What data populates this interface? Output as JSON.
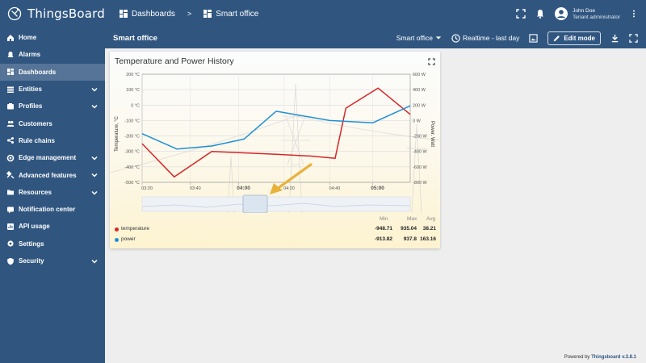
{
  "app": {
    "brand": "ThingsBoard"
  },
  "sidebar": {
    "items": [
      {
        "label": "Home",
        "icon": "home-icon",
        "active": false,
        "expandable": false
      },
      {
        "label": "Alarms",
        "icon": "alarm-icon",
        "active": false,
        "expandable": false
      },
      {
        "label": "Dashboards",
        "icon": "dashboard-icon",
        "active": true,
        "expandable": false
      },
      {
        "label": "Entities",
        "icon": "entities-icon",
        "active": false,
        "expandable": true
      },
      {
        "label": "Profiles",
        "icon": "profiles-icon",
        "active": false,
        "expandable": true
      },
      {
        "label": "Customers",
        "icon": "customers-icon",
        "active": false,
        "expandable": false
      },
      {
        "label": "Rule chains",
        "icon": "rule-chains-icon",
        "active": false,
        "expandable": false
      },
      {
        "label": "Edge management",
        "icon": "edge-icon",
        "active": false,
        "expandable": true
      },
      {
        "label": "Advanced features",
        "icon": "advanced-icon",
        "active": false,
        "expandable": true
      },
      {
        "label": "Resources",
        "icon": "resources-icon",
        "active": false,
        "expandable": true
      },
      {
        "label": "Notification center",
        "icon": "notification-icon",
        "active": false,
        "expandable": false
      },
      {
        "label": "API usage",
        "icon": "api-usage-icon",
        "active": false,
        "expandable": false
      },
      {
        "label": "Settings",
        "icon": "settings-icon",
        "active": false,
        "expandable": false
      },
      {
        "label": "Security",
        "icon": "security-icon",
        "active": false,
        "expandable": true
      }
    ]
  },
  "header": {
    "breadcrumb": [
      "Dashboards",
      "Smart office"
    ],
    "separator": ">",
    "user": {
      "name": "John Doe",
      "role": "Tenant administrator"
    }
  },
  "dashboard": {
    "title": "Smart office",
    "state_selector": "Smart office",
    "timewindow": "Realtime - last day",
    "edit_label": "Edit mode"
  },
  "widget": {
    "title": "Temperature and Power History",
    "legend": {
      "headers": [
        "Min",
        "Max",
        "Avg"
      ],
      "rows": [
        {
          "name": "temperature",
          "color": "#d62728",
          "min": "-948.71",
          "max": "935.04",
          "avg": "38.21"
        },
        {
          "name": "power",
          "color": "#1f8fd6",
          "min": "-913.82",
          "max": "937.8",
          "avg": "163.16"
        }
      ]
    }
  },
  "chart_data": {
    "type": "line",
    "x": [
      "03:20",
      "03:40",
      "04:00",
      "04:20",
      "04:40",
      "05:00"
    ],
    "xlabel": "",
    "y_left": {
      "label": "Temperature, °C",
      "ticks": [
        "200 °C",
        "100 °C",
        "0 °C",
        "-100 °C",
        "-200 °C",
        "-300 °C",
        "-400 °C",
        "-500 °C"
      ],
      "lim": [
        -500,
        200
      ]
    },
    "y_right": {
      "label": "Power, Watt",
      "ticks": [
        "600 W",
        "400 W",
        "200 W",
        "0 W",
        "-200 W",
        "-400 W",
        "-600 W",
        "-800 W"
      ],
      "lim": [
        -800,
        600
      ]
    },
    "x_ticks": [
      {
        "label": "03:20",
        "pos": 0.0,
        "bold": false
      },
      {
        "label": "03:40",
        "pos": 0.18,
        "bold": false
      },
      {
        "label": "04:00",
        "pos": 0.36,
        "bold": true
      },
      {
        "label": "04:20",
        "pos": 0.53,
        "bold": false
      },
      {
        "label": "04:40",
        "pos": 0.7,
        "bold": false
      },
      {
        "label": "05:00",
        "pos": 0.86,
        "bold": true
      }
    ],
    "series": [
      {
        "name": "temperature",
        "color": "#d62728",
        "axis": "left",
        "points": [
          [
            0.0,
            -250
          ],
          [
            0.12,
            -465
          ],
          [
            0.26,
            -300
          ],
          [
            0.5,
            -318
          ],
          [
            0.63,
            -330
          ],
          [
            0.72,
            -345
          ],
          [
            0.76,
            -20
          ],
          [
            0.88,
            110
          ],
          [
            1.0,
            -60
          ]
        ]
      },
      {
        "name": "power",
        "color": "#1f8fd6",
        "axis": "right",
        "points": [
          [
            0.0,
            -170
          ],
          [
            0.13,
            -370
          ],
          [
            0.26,
            -330
          ],
          [
            0.38,
            -240
          ],
          [
            0.5,
            120
          ],
          [
            0.7,
            0
          ],
          [
            0.86,
            -30
          ],
          [
            1.0,
            190
          ]
        ]
      }
    ],
    "grid": true,
    "legend_position": "bottom"
  },
  "footer": {
    "prefix": "Powered by",
    "link": "Thingsboard v.3.8.1"
  }
}
